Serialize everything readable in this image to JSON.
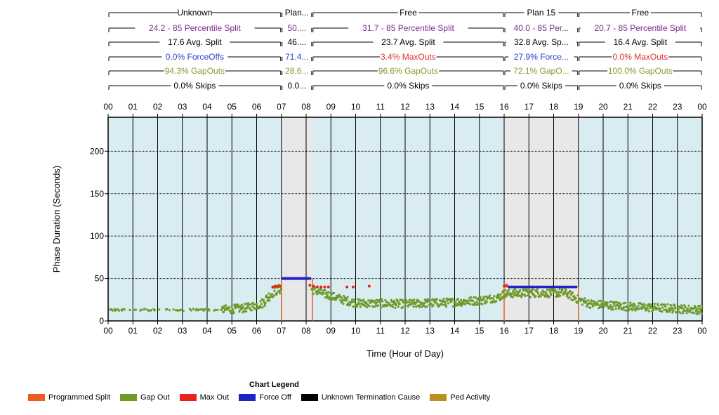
{
  "chart_data": {
    "type": "scatter",
    "xlabel": "Time (Hour of Day)",
    "ylabel": "Phase Duration (Seconds)",
    "xlim": [
      0,
      24
    ],
    "ylim": [
      0,
      240
    ],
    "x_ticks": [
      "00",
      "01",
      "02",
      "03",
      "04",
      "05",
      "06",
      "07",
      "08",
      "09",
      "10",
      "11",
      "12",
      "13",
      "14",
      "15",
      "16",
      "17",
      "18",
      "19",
      "20",
      "21",
      "22",
      "23",
      "00"
    ],
    "y_ticks": [
      0,
      50,
      100,
      150,
      200
    ],
    "grid": true,
    "plans": [
      {
        "name": "Unknown",
        "start": 0,
        "end": 7,
        "shaded": false,
        "stats": [
          "24.2 - 85 Percentile Split",
          "17.6 Avg. Split",
          "0.0% ForceOffs",
          "94.3% GapOuts",
          "0.0% Skips"
        ]
      },
      {
        "name": "Plan...",
        "start": 7,
        "end": 8.25,
        "shaded": true,
        "stats": [
          "50....",
          "46....",
          "71.4...",
          "28.6...",
          "0.0..."
        ]
      },
      {
        "name": "Free",
        "start": 8.25,
        "end": 16,
        "shaded": false,
        "stats": [
          "31.7 - 85 Percentile Split",
          "23.7 Avg. Split",
          "3.4% MaxOuts",
          "96.6% GapOuts",
          "0.0% Skips"
        ]
      },
      {
        "name": "Plan 15",
        "start": 16,
        "end": 19,
        "shaded": true,
        "stats": [
          "40.0 - 85 Per...",
          "32.8 Avg. Sp...",
          "27.9% Force...",
          "72.1% GapO...",
          "0.0% Skips"
        ]
      },
      {
        "name": "Free",
        "start": 19,
        "end": 24,
        "shaded": false,
        "stats": [
          "20.7 - 85 Percentile Split",
          "16.4 Avg. Split",
          "0.0% MaxOuts",
          "100.0% GapOuts",
          "0.0% Skips"
        ]
      }
    ],
    "stat_colors": [
      "#7b2c8b",
      "#000000",
      "#2c3fc9",
      "#7ea02e",
      "#000000"
    ],
    "stat_color_overrides": {
      "Free-0-2": "#e0302a",
      "Free-1-2": "#e0302a"
    },
    "programmed_split": [
      {
        "start": 7,
        "end": 8.25,
        "value": 50
      },
      {
        "start": 16,
        "end": 19,
        "value": 40
      }
    ],
    "series": [
      {
        "name": "Programmed Split",
        "color": "#ee5a1d"
      },
      {
        "name": "Gap Out",
        "color": "#6e9b2a"
      },
      {
        "name": "Max Out",
        "color": "#e8241c"
      },
      {
        "name": "Force Off",
        "color": "#1f22c4"
      },
      {
        "name": "Unknown Termination Cause",
        "color": "#000000"
      },
      {
        "name": "Ped Activity",
        "color": "#b8921c"
      }
    ],
    "gap_out_profile": [
      [
        0,
        13
      ],
      [
        4.5,
        13
      ],
      [
        5.5,
        15
      ],
      [
        6.2,
        20
      ],
      [
        6.7,
        35
      ],
      [
        7,
        38
      ],
      [
        8.2,
        38
      ],
      [
        8.6,
        33
      ],
      [
        9.5,
        25
      ],
      [
        10,
        21
      ],
      [
        12,
        20
      ],
      [
        14,
        22
      ],
      [
        15,
        24
      ],
      [
        15.8,
        28
      ],
      [
        16,
        32
      ],
      [
        17,
        33
      ],
      [
        18.5,
        33
      ],
      [
        19,
        25
      ],
      [
        19.5,
        20
      ],
      [
        21,
        17
      ],
      [
        22.5,
        15
      ],
      [
        24,
        13
      ]
    ],
    "gap_out_sparse_hours": [
      [
        0,
        4.6
      ]
    ],
    "max_out_points": [
      [
        6.65,
        40
      ],
      [
        6.75,
        41
      ],
      [
        6.85,
        40
      ],
      [
        6.95,
        41
      ],
      [
        8.15,
        42
      ],
      [
        8.3,
        41
      ],
      [
        8.45,
        40
      ],
      [
        8.6,
        40
      ],
      [
        8.75,
        40
      ],
      [
        8.9,
        40
      ],
      [
        9.65,
        40
      ],
      [
        9.9,
        40
      ],
      [
        10.55,
        41
      ],
      [
        16.0,
        41
      ],
      [
        16.1,
        42
      ]
    ],
    "force_off_points_ranges": [
      {
        "start": 7.05,
        "end": 8.15,
        "value": 50,
        "count": 28
      },
      {
        "start": 16.2,
        "end": 18.9,
        "value": 40,
        "count": 30
      }
    ],
    "legend_title": "Chart Legend"
  }
}
